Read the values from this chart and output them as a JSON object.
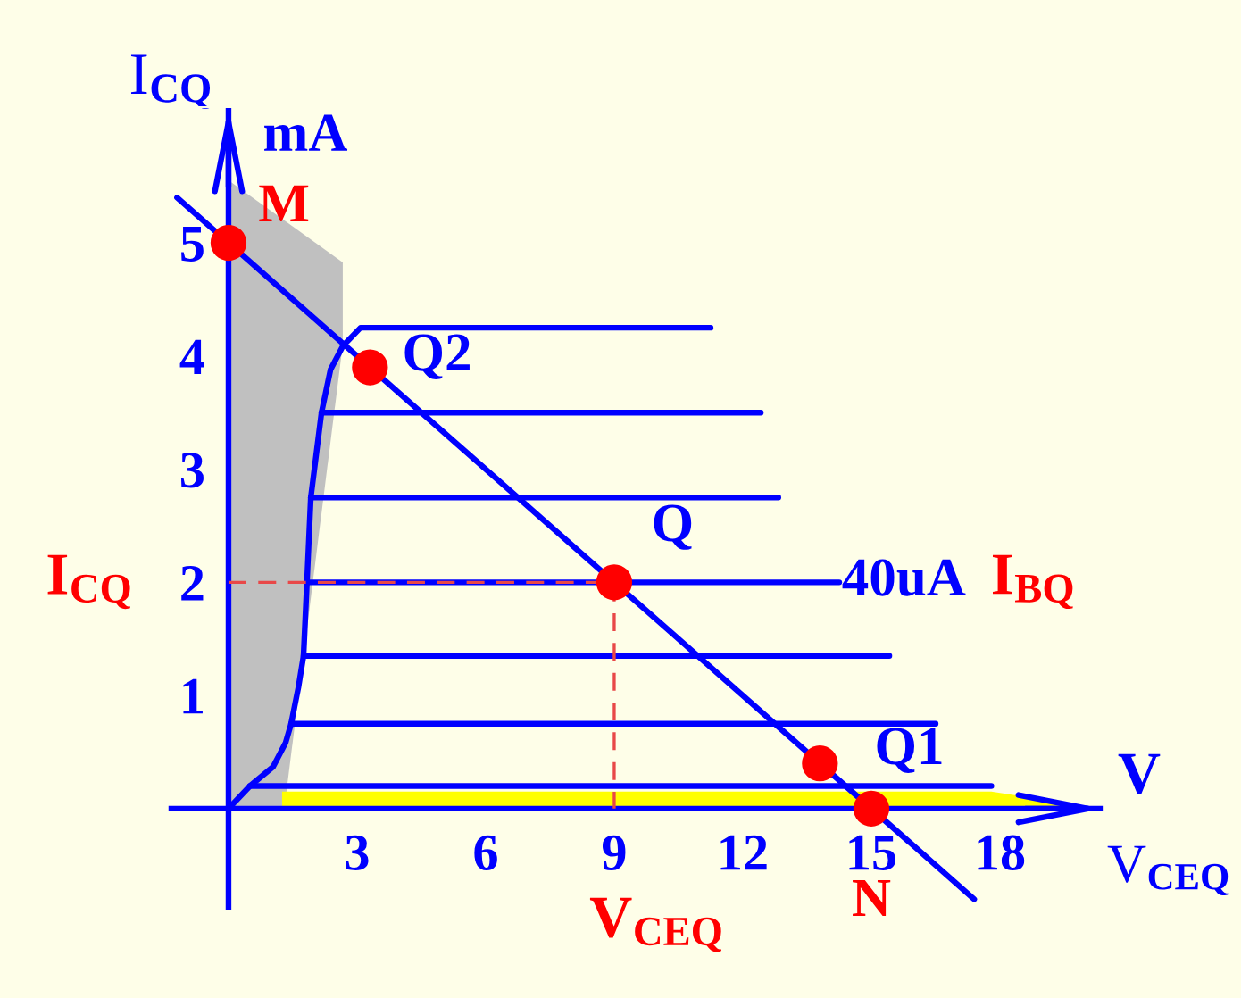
{
  "chart_data": {
    "type": "line",
    "xlabel": "V$_{CEQ}$",
    "ylabel": "I$_{CQ}$",
    "xlim": [
      -1.4,
      20.4
    ],
    "ylim": [
      -0.9,
      6.2
    ],
    "xticks": [
      3,
      6,
      9,
      12,
      15,
      18
    ],
    "yticks": [
      1,
      2,
      3,
      4,
      5
    ],
    "ref_lines": [
      {
        "axis": "x",
        "value": 0,
        "color": "#0000ff"
      }
    ],
    "series": [
      {
        "type": "area",
        "color": "#ffff00",
        "x": [
          1.25,
          17.8,
          20.4
        ],
        "values": [
          0.15,
          0.15,
          0
        ]
      },
      {
        "color": "#0000ff",
        "x": [
          -1.4,
          20.4
        ],
        "values": [
          0,
          0
        ]
      },
      {
        "color": "#0000ff",
        "x": [
          0,
          0.5,
          1.04,
          1.33,
          1.46,
          1.63,
          1.75,
          1.83,
          1.92,
          2.17,
          2.38,
          2.67,
          3.08,
          11.25
        ],
        "values": [
          0,
          0.2,
          0.37,
          0.58,
          0.75,
          1.07,
          1.35,
          2,
          2.75,
          3.5,
          3.88,
          4.09,
          4.25,
          4.25
        ]
      },
      {
        "color": "#0000ff",
        "x": [
          2.17,
          12.42
        ],
        "values": [
          3.5,
          3.5
        ]
      },
      {
        "color": "#0000ff",
        "x": [
          1.92,
          12.83
        ],
        "values": [
          2.75,
          2.75
        ]
      },
      {
        "color": "#0000ff",
        "name": "40uA",
        "x": [
          1.83,
          14.25
        ],
        "values": [
          2,
          2
        ]
      },
      {
        "color": "#0000ff",
        "x": [
          1.75,
          15.42
        ],
        "values": [
          1.35,
          1.35
        ]
      },
      {
        "color": "#0000ff",
        "x": [
          1.46,
          16.5
        ],
        "values": [
          0.75,
          0.75
        ]
      },
      {
        "color": "#0000ff",
        "x": [
          0.5,
          17.8
        ],
        "values": [
          0.2,
          0.2
        ]
      },
      {
        "color": "#0000ff",
        "x": [
          -1.2,
          17.4
        ],
        "values": [
          5.4,
          -0.8
        ]
      },
      {
        "color": "#e84848",
        "line_style": "dashed",
        "x": [
          0,
          9,
          9
        ],
        "values": [
          2,
          2,
          0
        ]
      },
      {
        "type": "scatter",
        "color": "#ff0000",
        "marker": "circle",
        "x": [
          0,
          3.3,
          9,
          13.8,
          15
        ],
        "values": [
          5,
          3.9,
          2,
          0.4,
          0
        ]
      }
    ],
    "annotations": [
      {
        "text": "M",
        "x": 0,
        "y": 5
      },
      {
        "text": "Q2",
        "x": 3.3,
        "y": 3.9
      },
      {
        "text": "Q",
        "x": 9,
        "y": 2
      },
      {
        "text": "Q1",
        "x": 13.8,
        "y": 0.4
      },
      {
        "text": "N",
        "x": 15,
        "y": 0
      },
      {
        "text": "V$_{CEQ}$",
        "x": 9,
        "y": 0
      },
      "I$_{CQ}$",
      "I$_{BQ}$",
      "mA",
      "V"
    ]
  }
}
